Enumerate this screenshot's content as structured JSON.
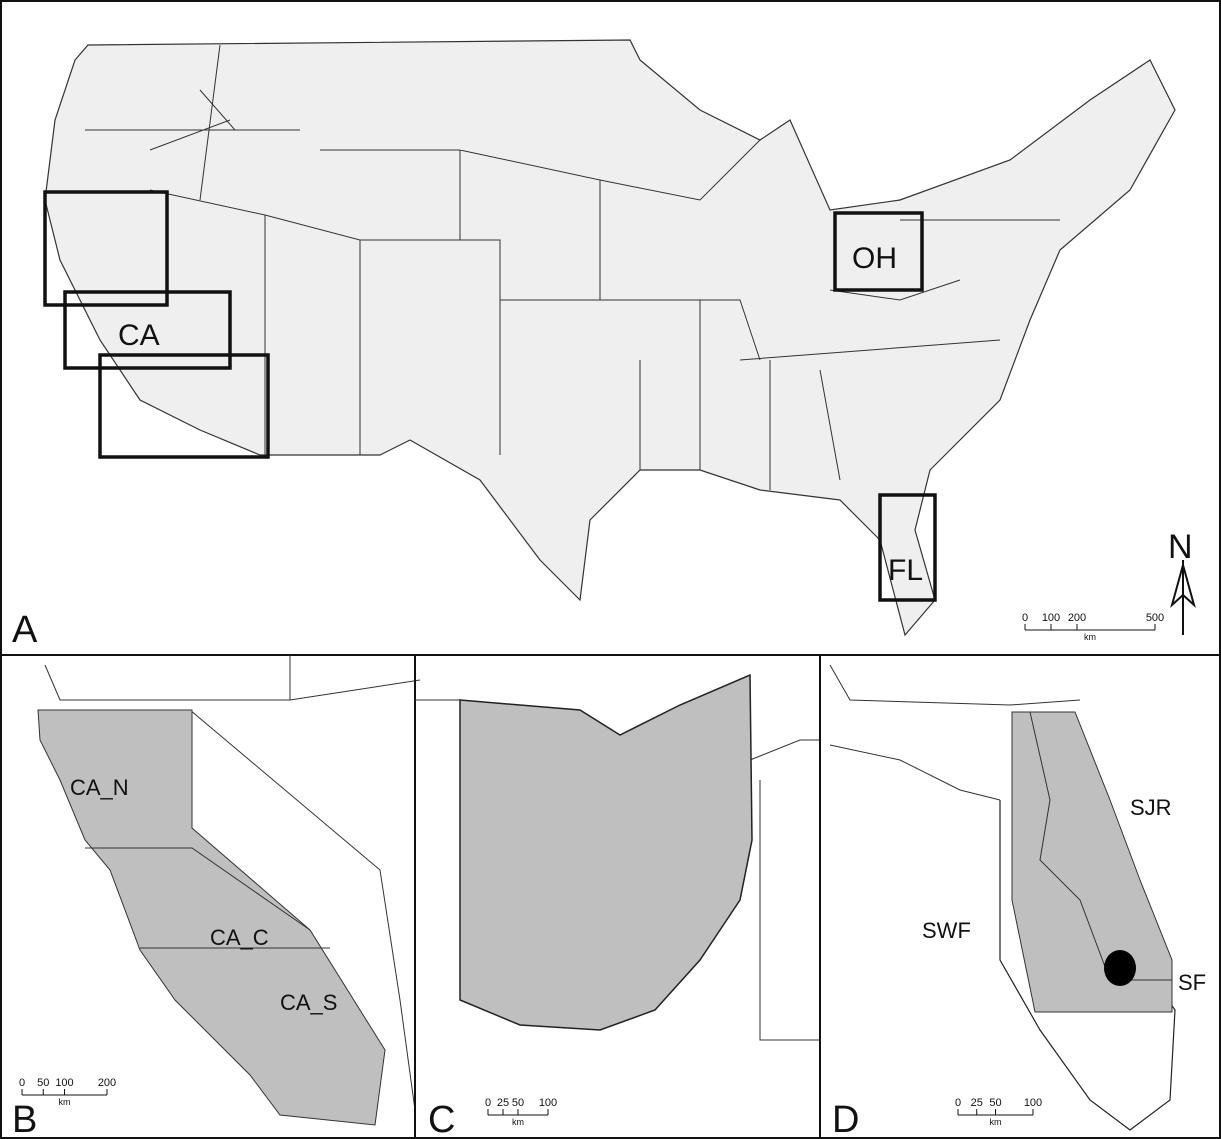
{
  "panels": [
    {
      "letter": "A",
      "boxes": [
        "CA",
        "OH",
        "FL"
      ],
      "north": "N",
      "scale": {
        "ticks": [
          0,
          100,
          200,
          500
        ],
        "unit": "km"
      }
    },
    {
      "letter": "B",
      "regions": [
        "CA_N",
        "CA_C",
        "CA_S"
      ],
      "scale": {
        "ticks": [
          0,
          50,
          100,
          200
        ],
        "unit": "km"
      }
    },
    {
      "letter": "C",
      "scale": {
        "ticks": [
          0,
          25,
          50,
          100
        ],
        "unit": "km"
      }
    },
    {
      "letter": "D",
      "regions": [
        "SJR",
        "SWF",
        "SF"
      ],
      "scale": {
        "ticks": [
          0,
          25,
          50,
          100
        ],
        "unit": "km"
      }
    }
  ]
}
